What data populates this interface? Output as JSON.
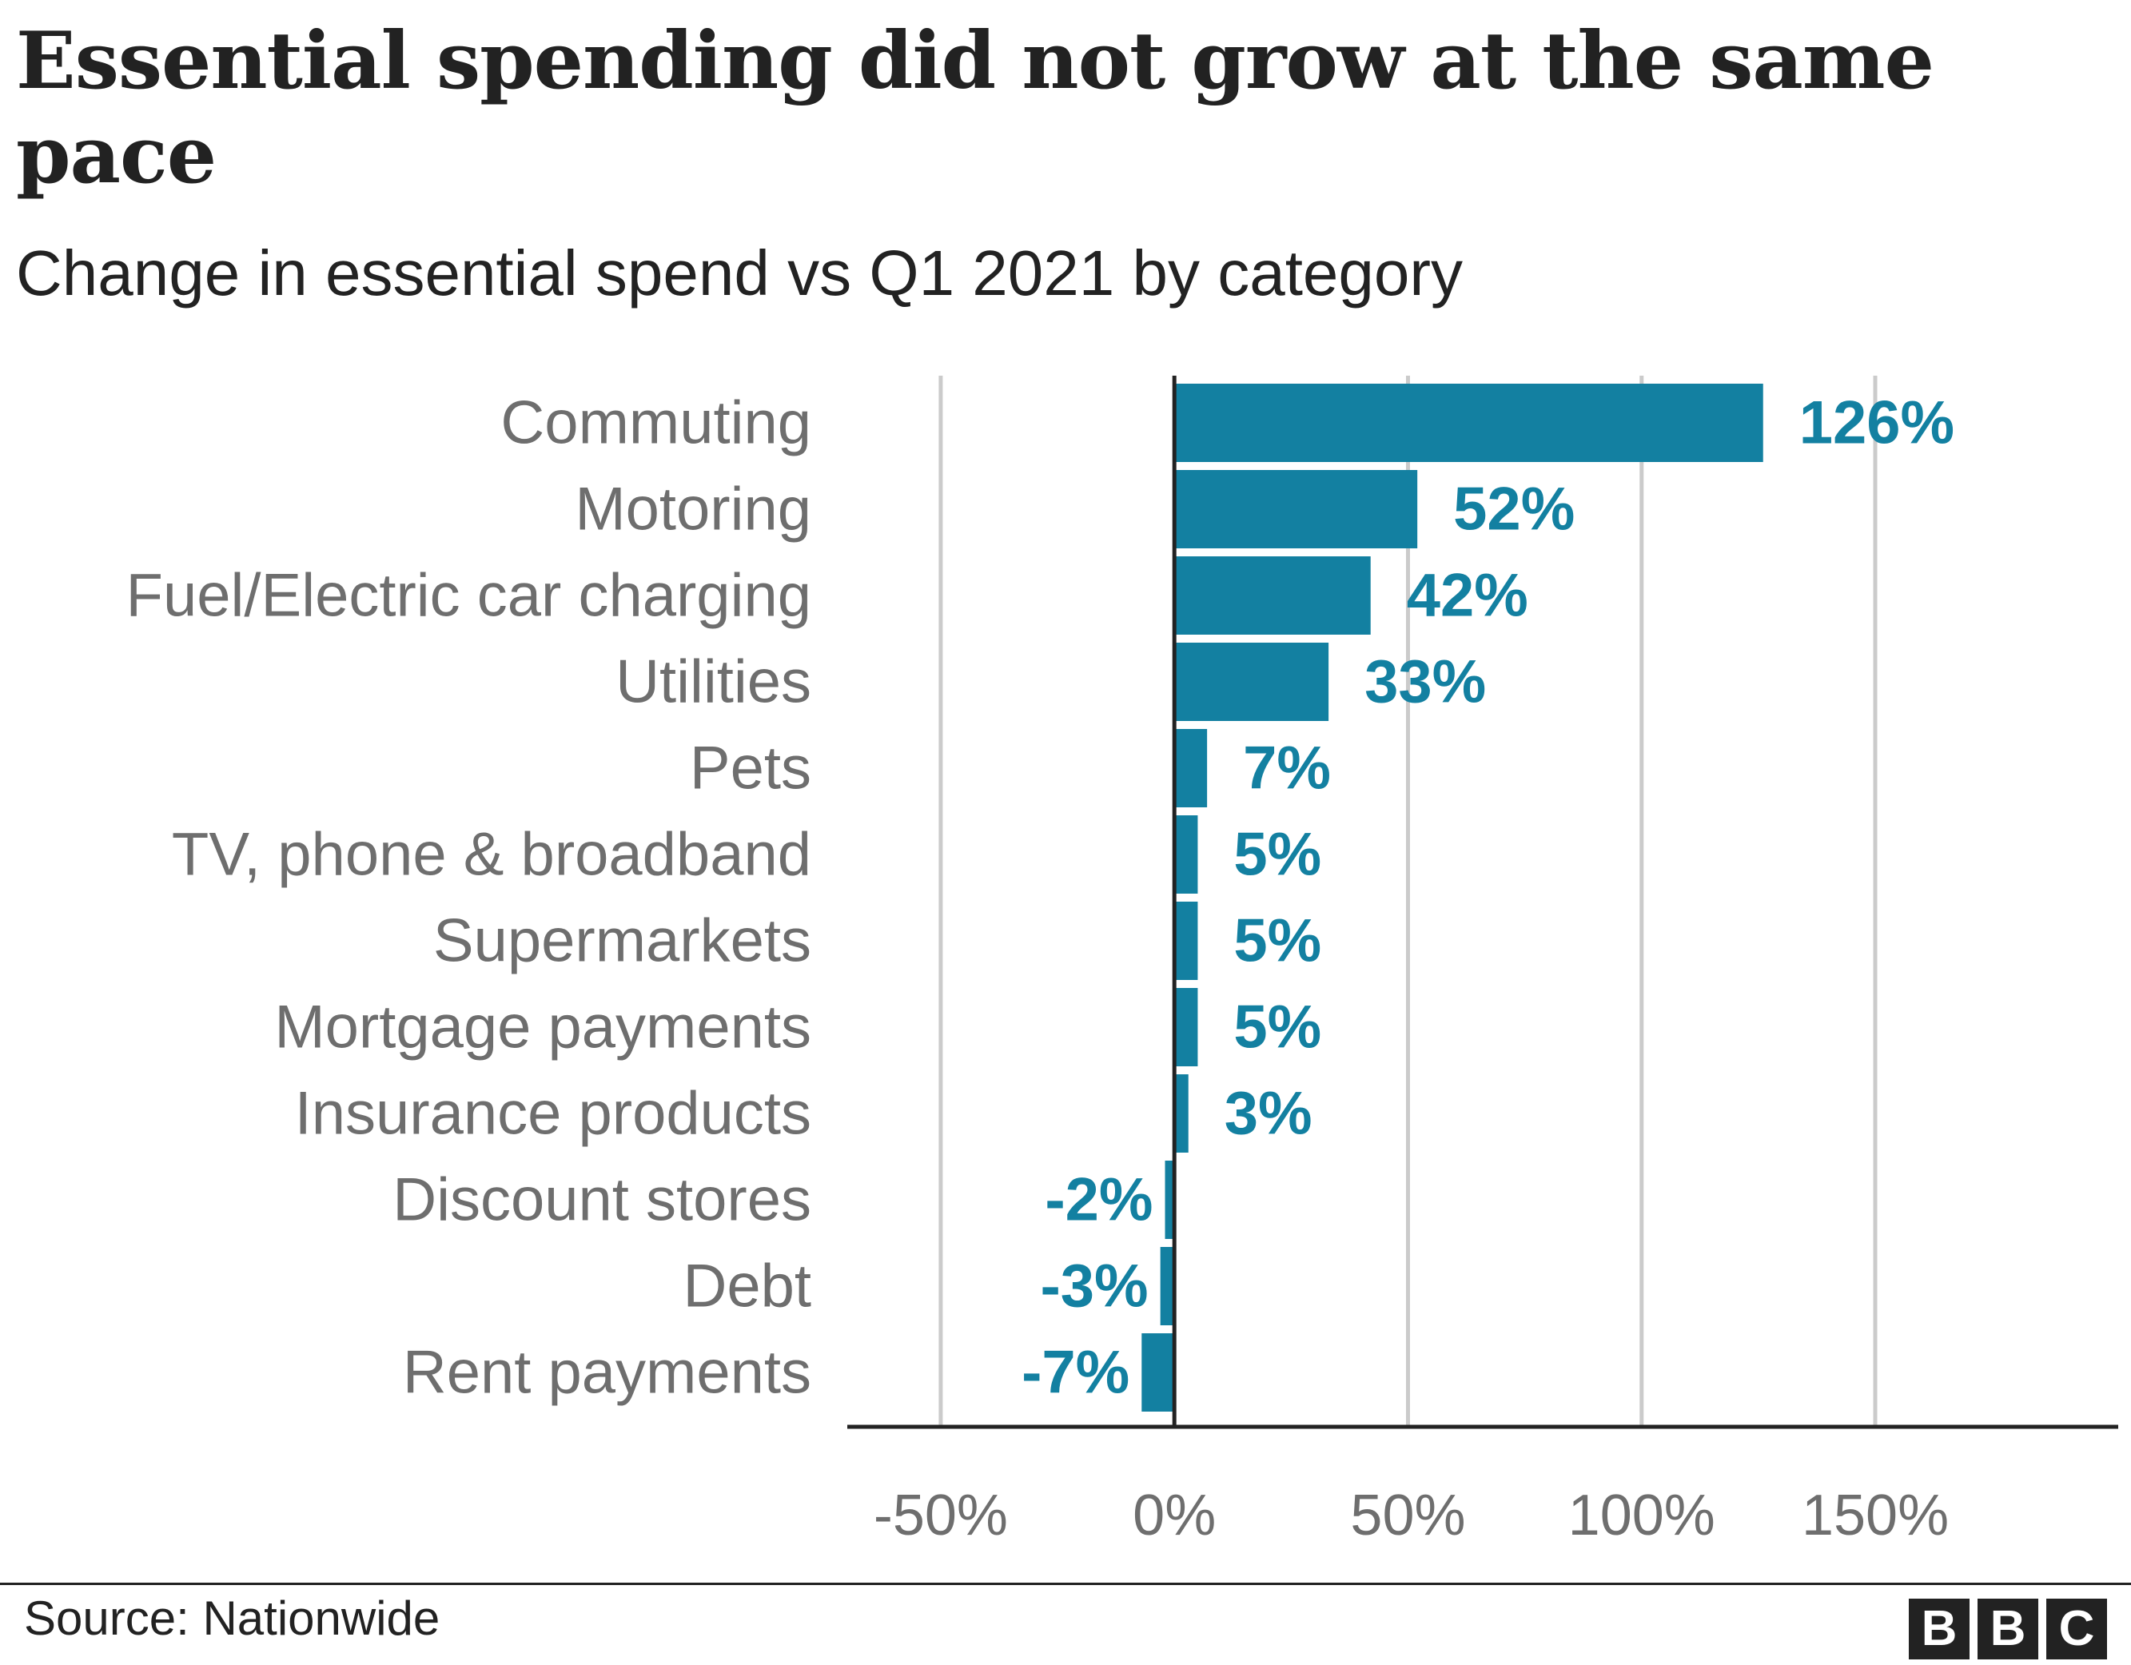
{
  "title": "Essential spending did not grow at the same pace",
  "subtitle": "Change in essential spend vs Q1 2021 by category",
  "source": "Source: Nationwide",
  "logo": {
    "letters": [
      "B",
      "B",
      "C"
    ]
  },
  "colors": {
    "bar": "#1380A1",
    "value_text": "#1380A1",
    "axis": "#222222",
    "grid": "#cbcbcb",
    "label_text": "#6e6e6e"
  },
  "chart_data": {
    "type": "bar",
    "orientation": "horizontal",
    "categories": [
      "Commuting",
      "Motoring",
      "Fuel/Electric car charging",
      "Utilities",
      "Pets",
      "TV, phone & broadband",
      "Supermarkets",
      "Mortgage payments",
      "Insurance products",
      "Discount stores",
      "Debt",
      "Rent payments"
    ],
    "values": [
      126,
      52,
      42,
      33,
      7,
      5,
      5,
      5,
      3,
      -2,
      -3,
      -7
    ],
    "value_labels": [
      "126%",
      "52%",
      "42%",
      "33%",
      "7%",
      "5%",
      "5%",
      "5%",
      "3%",
      "-2%",
      "-3%",
      "-7%"
    ],
    "xlim": [
      -70,
      202
    ],
    "xticks": [
      -50,
      0,
      50,
      100,
      150
    ],
    "xtick_labels": [
      "-50%",
      "0%",
      "50%",
      "100%",
      "150%"
    ],
    "xlabel": "",
    "ylabel": "",
    "grid": true,
    "legend": "none"
  }
}
